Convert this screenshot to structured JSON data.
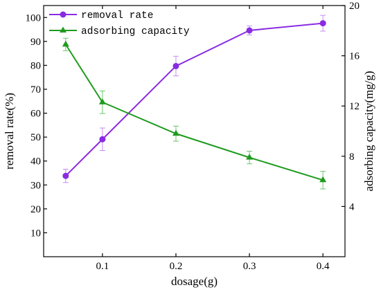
{
  "chart_data": {
    "type": "line",
    "xlabel": "dosage(g)",
    "ylabel_left": "removal rate(%)",
    "ylabel_right": "adsorbing capacity(mg/g)",
    "x": [
      0.05,
      0.1,
      0.2,
      0.3,
      0.4
    ],
    "x_ticks": [
      0.1,
      0.2,
      0.3,
      0.4
    ],
    "xlim": [
      0.02,
      0.43
    ],
    "ylim_left": [
      0,
      105
    ],
    "ylim_right": [
      0,
      20
    ],
    "y_ticks_left": [
      10,
      20,
      30,
      40,
      50,
      60,
      70,
      80,
      90,
      100
    ],
    "y_ticks_right": [
      4,
      8,
      12,
      16,
      20
    ],
    "legend_position": "top-left",
    "grid": false,
    "series": [
      {
        "name": "removal rate",
        "axis": "left",
        "marker": "circle",
        "color": "#8a2be2",
        "errorbar_color": "#c58ef0",
        "values": [
          33.8,
          49.1,
          79.7,
          94.6,
          97.6
        ],
        "errors": [
          2.8,
          4.7,
          4.1,
          1.9,
          3.3
        ]
      },
      {
        "name": "adsorbing capacity",
        "axis": "right",
        "marker": "triangle",
        "color": "#1e9b1e",
        "errorbar_color": "#6bc46b",
        "values": [
          16.9,
          12.3,
          9.8,
          7.9,
          6.1
        ],
        "errors": [
          0.5,
          0.9,
          0.6,
          0.5,
          0.7
        ]
      }
    ]
  }
}
